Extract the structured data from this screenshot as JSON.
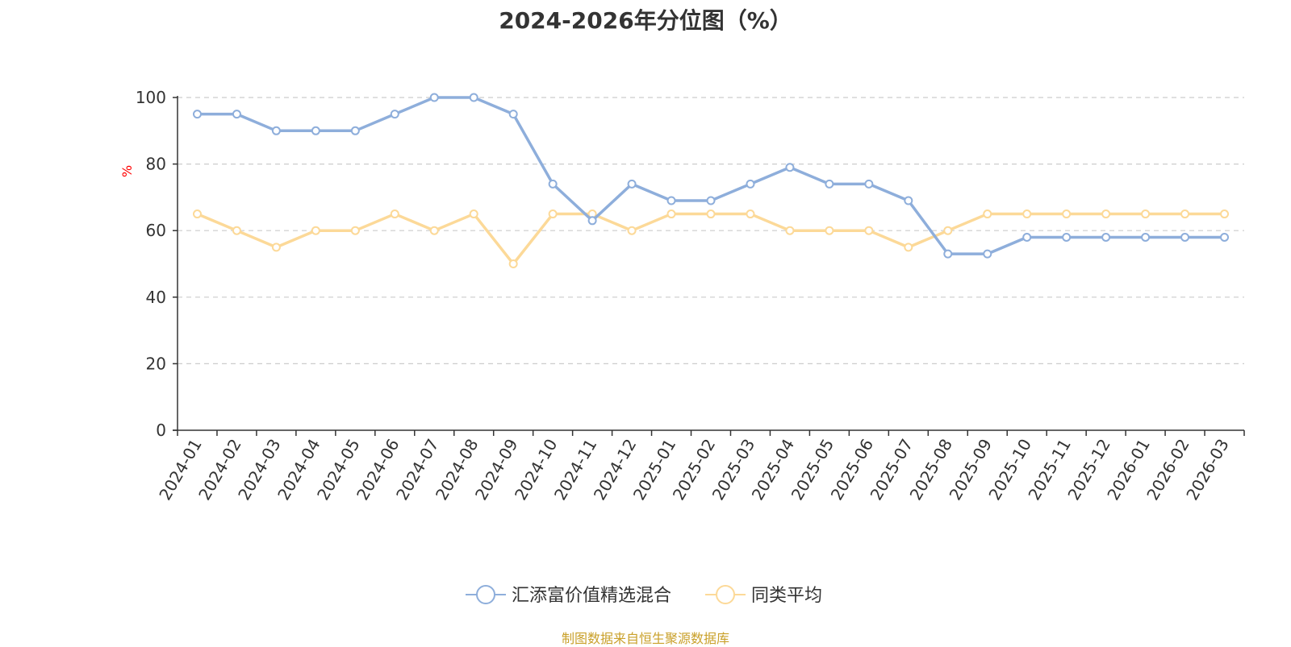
{
  "chart_data": {
    "type": "line",
    "title": "2024-2026年分位图（%）",
    "ylabel": "%",
    "xlabel": "",
    "ylim": [
      0,
      100
    ],
    "yticks": [
      0,
      20,
      40,
      60,
      80,
      100
    ],
    "grid": true,
    "legend_position": "bottom",
    "categories": [
      "2024-01",
      "2024-02",
      "2024-03",
      "2024-04",
      "2024-05",
      "2024-06",
      "2024-07",
      "2024-08",
      "2024-09",
      "2024-10",
      "2024-11",
      "2024-12",
      "2025-01",
      "2025-02",
      "2025-03",
      "2025-04",
      "2025-05",
      "2025-06",
      "2025-07",
      "2025-08",
      "2025-09",
      "2025-10",
      "2025-11",
      "2025-12",
      "2026-01",
      "2026-02",
      "2026-03"
    ],
    "series": [
      {
        "name": "汇添富价值精选混合",
        "color": "#8eaedb",
        "values": [
          95,
          95,
          90,
          90,
          90,
          95,
          100,
          100,
          95,
          74,
          63,
          74,
          69,
          69,
          74,
          79,
          74,
          74,
          69,
          53,
          53,
          58,
          58,
          58,
          58,
          58,
          58
        ]
      },
      {
        "name": "同类平均",
        "color": "#fcd998",
        "values": [
          65,
          60,
          55,
          60,
          60,
          65,
          60,
          65,
          50,
          65,
          65,
          60,
          65,
          65,
          65,
          60,
          60,
          60,
          55,
          60,
          65,
          65,
          65,
          65,
          65,
          65,
          65
        ]
      }
    ]
  },
  "source_note": "制图数据来自恒生聚源数据库",
  "colors": {
    "axis": "#333333",
    "grid": "#cccccc",
    "ylabel": "#ff0000",
    "source_note": "#c9a02a"
  }
}
